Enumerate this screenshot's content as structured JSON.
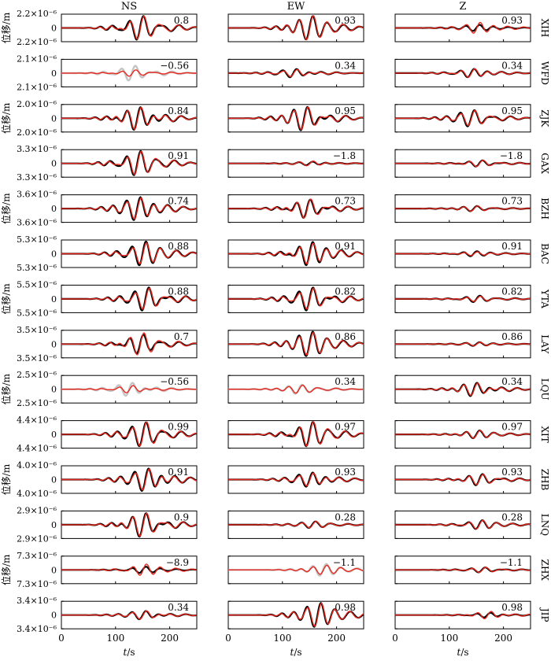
{
  "chart_data": {
    "type": "line",
    "columns": [
      "NS",
      "EW",
      "Z"
    ],
    "ylabel": "位移/m",
    "xlabel_italic": "t",
    "xlabel_unit": "/s",
    "xlim": [
      0,
      250
    ],
    "xticks": [
      0,
      100,
      200
    ],
    "line_colors": {
      "observed": "#000000",
      "synthetic": "#e8281e",
      "rejected": "#c4c4c4"
    },
    "stations": [
      {
        "name": "XIH",
        "ytick_labels": [
          "2.2×10⁻⁶",
          "0",
          "2.2×10⁻⁶"
        ],
        "cc": [
          "0.8",
          "0.93",
          "0.93"
        ],
        "used": [
          true,
          true,
          true
        ],
        "center": [
          145,
          150,
          150
        ],
        "obs_amp": [
          0.95,
          0.9,
          0.25
        ],
        "syn_amp": [
          0.9,
          0.95,
          0.45
        ]
      },
      {
        "name": "WFD",
        "ytick_labels": [
          "2.1×10⁻⁶",
          "0",
          "2.1×10⁻⁶"
        ],
        "cc": [
          "−0.56",
          "0.34",
          "0.34"
        ],
        "used": [
          false,
          true,
          true
        ],
        "center": [
          130,
          120,
          140
        ],
        "obs_amp": [
          0.6,
          0.35,
          0.35
        ],
        "syn_amp": [
          0.25,
          0.3,
          0.35
        ]
      },
      {
        "name": "ZJK",
        "ytick_labels": [
          "2.0×10⁻⁶",
          "0",
          "2.0×10⁻⁶"
        ],
        "cc": [
          "0.84",
          "0.95",
          "0.95"
        ],
        "used": [
          true,
          true,
          true
        ],
        "center": [
          140,
          140,
          140
        ],
        "obs_amp": [
          0.95,
          0.95,
          0.65
        ],
        "syn_amp": [
          0.9,
          0.9,
          0.6
        ]
      },
      {
        "name": "GAX",
        "ytick_labels": [
          "3.3×10⁻⁶",
          "0",
          "3.3×10⁻⁶"
        ],
        "cc": [
          "0.91",
          "−1.8",
          "−1.8"
        ],
        "used": [
          true,
          true,
          true
        ],
        "center": [
          140,
          150,
          155
        ],
        "obs_amp": [
          0.95,
          0.15,
          0.25
        ],
        "syn_amp": [
          0.9,
          0.2,
          0.25
        ]
      },
      {
        "name": "BZH",
        "ytick_labels": [
          "3.6×10⁻⁶",
          "0",
          "3.6×10⁻⁶"
        ],
        "cc": [
          "0.74",
          "0.73",
          "0.73"
        ],
        "used": [
          true,
          true,
          true
        ],
        "center": [
          140,
          145,
          145
        ],
        "obs_amp": [
          0.95,
          0.75,
          0.2
        ],
        "syn_amp": [
          0.9,
          0.75,
          0.2
        ]
      },
      {
        "name": "BAC",
        "ytick_labels": [
          "5.3×10⁻⁶",
          "0",
          "5.3×10⁻⁶"
        ],
        "cc": [
          "0.88",
          "0.91",
          "0.91"
        ],
        "used": [
          true,
          true,
          true
        ],
        "center": [
          150,
          150,
          145
        ],
        "obs_amp": [
          0.95,
          0.95,
          0.2
        ],
        "syn_amp": [
          0.85,
          0.85,
          0.15
        ]
      },
      {
        "name": "YTA",
        "ytick_labels": [
          "5.5×10⁻⁶",
          "0",
          "5.5×10⁻⁶"
        ],
        "cc": [
          "0.88",
          "0.82",
          "0.82"
        ],
        "used": [
          true,
          true,
          true
        ],
        "center": [
          155,
          150,
          150
        ],
        "obs_amp": [
          0.95,
          0.95,
          0.25
        ],
        "syn_amp": [
          0.85,
          0.85,
          0.2
        ]
      },
      {
        "name": "LAY",
        "ytick_labels": [
          "3.5×10⁻⁶",
          "0",
          "3.5×10⁻⁶"
        ],
        "cc": [
          "0.7",
          "0.86",
          "0.86"
        ],
        "used": [
          true,
          true,
          true
        ],
        "center": [
          145,
          150,
          150
        ],
        "obs_amp": [
          0.75,
          0.95,
          0.15
        ],
        "syn_amp": [
          0.85,
          0.9,
          0.15
        ]
      },
      {
        "name": "LQU",
        "ytick_labels": [
          "2.5×10⁻⁶",
          "0",
          "2.5×10⁻⁶"
        ],
        "cc": [
          "−0.56",
          "0.34",
          "0.34"
        ],
        "used": [
          false,
          false,
          true
        ],
        "center": [
          125,
          130,
          145
        ],
        "obs_amp": [
          0.55,
          0.35,
          0.55
        ],
        "syn_amp": [
          0.3,
          0.3,
          0.5
        ]
      },
      {
        "name": "XIT",
        "ytick_labels": [
          "4.4×10⁻⁶",
          "0",
          "4.4×10⁻⁶"
        ],
        "cc": [
          "0.99",
          "0.97",
          "0.97"
        ],
        "used": [
          true,
          true,
          true
        ],
        "center": [
          150,
          150,
          150
        ],
        "obs_amp": [
          0.95,
          0.95,
          0.3
        ],
        "syn_amp": [
          0.95,
          0.95,
          0.3
        ]
      },
      {
        "name": "ZHB",
        "ytick_labels": [
          "4.0×10⁻⁶",
          "0",
          "4.0×10⁻⁶"
        ],
        "cc": [
          "0.91",
          "0.93",
          "0.93"
        ],
        "used": [
          true,
          true,
          true
        ],
        "center": [
          155,
          150,
          155
        ],
        "obs_amp": [
          0.95,
          0.6,
          0.45
        ],
        "syn_amp": [
          0.9,
          0.55,
          0.4
        ]
      },
      {
        "name": "LNQ",
        "ytick_labels": [
          "2.9×10⁻⁶",
          "0",
          "2.9×10⁻⁶"
        ],
        "cc": [
          "0.9",
          "0.28",
          "0.28"
        ],
        "used": [
          true,
          true,
          true
        ],
        "center": [
          150,
          155,
          155
        ],
        "obs_amp": [
          0.95,
          0.25,
          0.35
        ],
        "syn_amp": [
          0.9,
          0.25,
          0.35
        ]
      },
      {
        "name": "ZHX",
        "ytick_labels": [
          "7.3×10⁻⁶",
          "0",
          "7.3×10⁻⁶"
        ],
        "cc": [
          "−8.9",
          "−1.1",
          "−1.1"
        ],
        "used": [
          true,
          false,
          true
        ],
        "center": [
          150,
          175,
          160
        ],
        "obs_amp": [
          0.25,
          0.45,
          0.2
        ],
        "syn_amp": [
          0.45,
          0.35,
          0.2
        ]
      },
      {
        "name": "JIP",
        "ytick_labels": [
          "3.4×10⁻⁶",
          "0",
          "3.4×10⁻⁶"
        ],
        "cc": [
          "0.34",
          "0.98",
          "0.98"
        ],
        "used": [
          true,
          true,
          true
        ],
        "center": [
          150,
          165,
          170
        ],
        "obs_amp": [
          0.35,
          0.95,
          0.2
        ],
        "syn_amp": [
          0.35,
          0.95,
          0.3
        ]
      }
    ]
  }
}
